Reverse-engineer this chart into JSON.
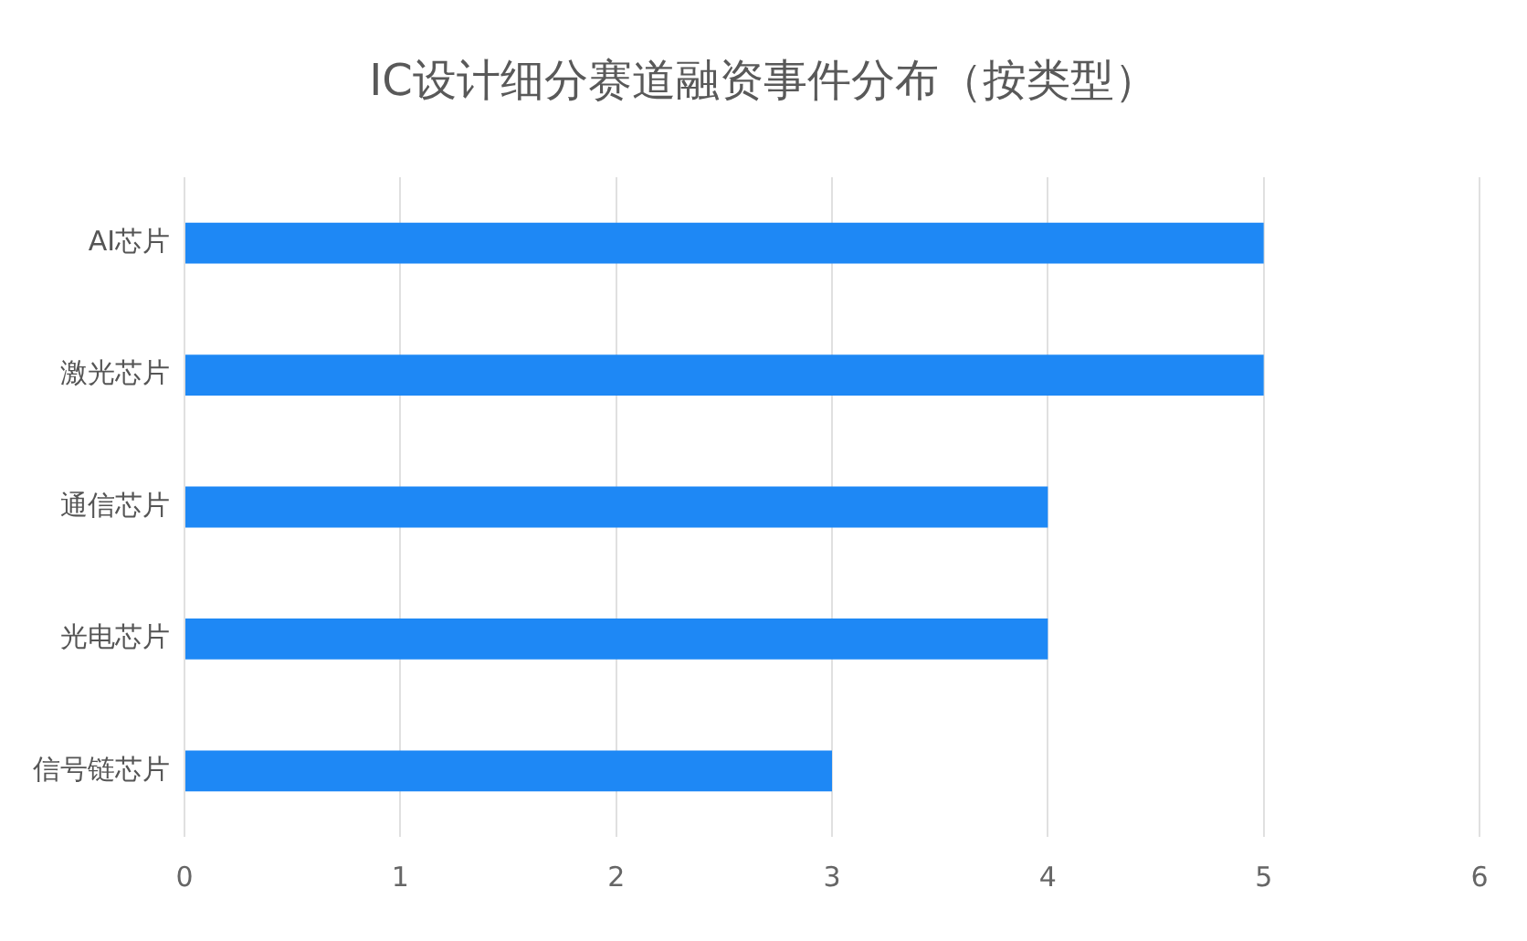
{
  "chart_data": {
    "type": "bar",
    "orientation": "horizontal",
    "title": "IC设计细分赛道融资事件分布（按类型）",
    "categories": [
      "AI芯片",
      "激光芯片",
      "通信芯片",
      "光电芯片",
      "信号链芯片"
    ],
    "values": [
      5,
      5,
      4,
      4,
      3
    ],
    "color": "#1e88f5",
    "xlim": [
      0,
      6
    ],
    "xticks": [
      0,
      1,
      2,
      3,
      4,
      5,
      6
    ],
    "grid": "x"
  }
}
